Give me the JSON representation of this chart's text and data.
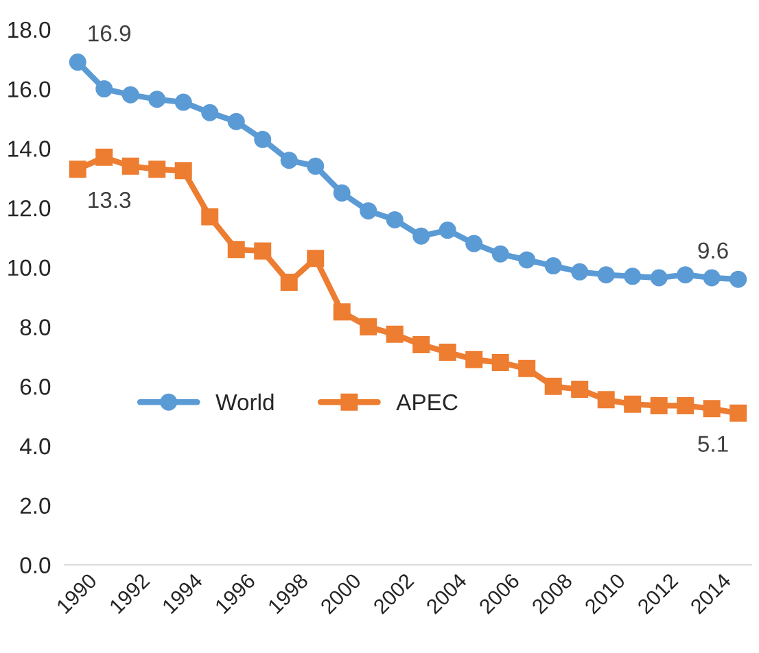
{
  "chart_data": {
    "type": "line",
    "categories": [
      "1990",
      null,
      "1992",
      null,
      "1994",
      null,
      "1996",
      null,
      "1998",
      null,
      "2000",
      null,
      "2002",
      null,
      "2004",
      null,
      "2006",
      null,
      "2008",
      null,
      "2010",
      null,
      "2012",
      null,
      "2014",
      null
    ],
    "series": [
      {
        "name": "World",
        "color": "#5b9bd5",
        "marker": "circle",
        "values": [
          16.9,
          16.0,
          15.8,
          15.65,
          15.55,
          15.2,
          14.9,
          14.3,
          13.6,
          13.4,
          12.5,
          11.9,
          11.6,
          11.05,
          11.25,
          10.8,
          10.45,
          10.25,
          10.05,
          9.85,
          9.75,
          9.7,
          9.65,
          9.75,
          9.65,
          9.6
        ]
      },
      {
        "name": "APEC",
        "color": "#ed7d31",
        "marker": "square",
        "values": [
          13.3,
          13.7,
          13.4,
          13.3,
          13.25,
          11.7,
          10.6,
          10.55,
          9.5,
          10.3,
          8.5,
          8.0,
          7.75,
          7.4,
          7.15,
          6.9,
          6.8,
          6.6,
          6.0,
          5.9,
          5.55,
          5.4,
          5.35,
          5.35,
          5.25,
          5.1
        ]
      }
    ],
    "ylim": [
      0,
      18
    ],
    "yticks": [
      {
        "value": 0,
        "label": "0.0"
      },
      {
        "value": 2,
        "label": "2.0"
      },
      {
        "value": 4,
        "label": "4.0"
      },
      {
        "value": 6,
        "label": "6.0"
      },
      {
        "value": 8,
        "label": "8.0"
      },
      {
        "value": 10,
        "label": "10.0"
      },
      {
        "value": 12,
        "label": "12.0"
      },
      {
        "value": 14,
        "label": "14.0"
      },
      {
        "value": 16,
        "label": "16.0"
      },
      {
        "value": 18,
        "label": "18.0"
      }
    ],
    "annotations": [
      {
        "text": "16.9",
        "x": "1990",
        "y": 16.9
      },
      {
        "text": "13.3",
        "x": "1990",
        "y": 13.3
      },
      {
        "text": "9.6",
        "y": 9.6
      },
      {
        "text": "5.1",
        "y": 5.1
      }
    ],
    "grid": false,
    "legend": "left"
  }
}
